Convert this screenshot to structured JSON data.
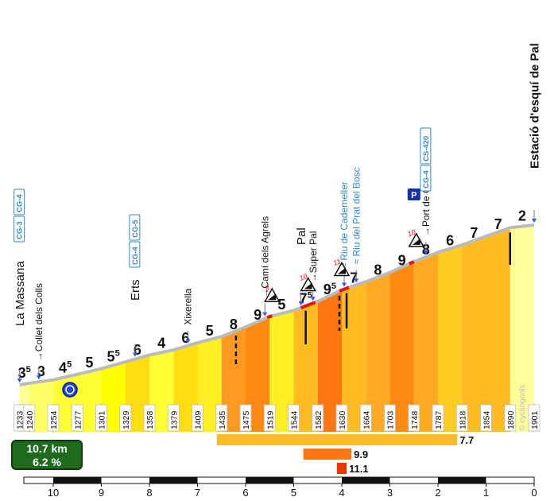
{
  "summary": {
    "distance": "10.7 km",
    "gradient": "6.2 %"
  },
  "watermark": "© cyclingcols",
  "chart_data": {
    "type": "area",
    "x_axis": {
      "reversed": true,
      "range": [
        10.7,
        0
      ],
      "ticks": [
        "10",
        "9",
        "8",
        "7",
        "6",
        "5",
        "4",
        "3",
        "2",
        "1",
        "0"
      ],
      "unit": "km"
    },
    "segments": [
      {
        "from": 10.7,
        "to": 10.5,
        "label": "3",
        "sup": "5",
        "color": "#ffff99"
      },
      {
        "from": 10.5,
        "to": 10.0,
        "label": "3",
        "sup": "",
        "color": "#ffff66"
      },
      {
        "from": 10.0,
        "to": 9.5,
        "label": "4",
        "sup": "5",
        "color": "#ffff33"
      },
      {
        "from": 9.5,
        "to": 9.0,
        "label": "5",
        "sup": "",
        "color": "#ffff33"
      },
      {
        "from": 9.0,
        "to": 8.5,
        "label": "5",
        "sup": "5",
        "color": "#ffff00"
      },
      {
        "from": 8.5,
        "to": 8.0,
        "label": "6",
        "sup": "",
        "color": "#ffdd11"
      },
      {
        "from": 8.0,
        "to": 7.5,
        "label": "4",
        "sup": "",
        "color": "#ffff33"
      },
      {
        "from": 7.5,
        "to": 7.0,
        "label": "6",
        "sup": "",
        "color": "#ffdd11"
      },
      {
        "from": 7.0,
        "to": 6.5,
        "label": "5",
        "sup": "",
        "color": "#ffee22"
      },
      {
        "from": 6.5,
        "to": 6.0,
        "label": "8",
        "sup": "",
        "color": "#ff9922"
      },
      {
        "from": 6.0,
        "to": 5.5,
        "label": "9",
        "sup": "",
        "color": "#ff8811"
      },
      {
        "from": 5.5,
        "to": 5.0,
        "label": "5",
        "sup": "",
        "color": "#ffee22"
      },
      {
        "from": 5.0,
        "to": 4.5,
        "label": "7",
        "sup": "5",
        "color": "#ffbb22"
      },
      {
        "from": 4.5,
        "to": 4.0,
        "label": "9",
        "sup": "5",
        "color": "#ff7711"
      },
      {
        "from": 4.0,
        "to": 3.5,
        "label": "7",
        "sup": "",
        "color": "#ffbb22"
      },
      {
        "from": 3.5,
        "to": 3.0,
        "label": "8",
        "sup": "",
        "color": "#ffaa22"
      },
      {
        "from": 3.0,
        "to": 2.5,
        "label": "9",
        "sup": "",
        "color": "#ff8811"
      },
      {
        "from": 2.5,
        "to": 2.0,
        "label": "8",
        "sup": "",
        "color": "#ffaa22"
      },
      {
        "from": 2.0,
        "to": 1.5,
        "label": "6",
        "sup": "",
        "color": "#ffcc22"
      },
      {
        "from": 1.5,
        "to": 1.0,
        "label": "7",
        "sup": "",
        "color": "#ffbb22"
      },
      {
        "from": 1.0,
        "to": 0.5,
        "label": "7",
        "sup": "",
        "color": "#ffbb22"
      },
      {
        "from": 0.5,
        "to": 0.0,
        "label": "2",
        "sup": "",
        "color": "#ffff99"
      }
    ],
    "altitudes": [
      {
        "km": 10.7,
        "alt": 1233
      },
      {
        "km": 10.5,
        "alt": 1240
      },
      {
        "km": 10.0,
        "alt": 1254
      },
      {
        "km": 9.5,
        "alt": 1277
      },
      {
        "km": 9.0,
        "alt": 1301
      },
      {
        "km": 8.5,
        "alt": 1329
      },
      {
        "km": 8.0,
        "alt": 1358
      },
      {
        "km": 7.5,
        "alt": 1379
      },
      {
        "km": 7.0,
        "alt": 1409
      },
      {
        "km": 6.5,
        "alt": 1435
      },
      {
        "km": 6.0,
        "alt": 1475
      },
      {
        "km": 5.5,
        "alt": 1519
      },
      {
        "km": 5.0,
        "alt": 1544
      },
      {
        "km": 4.5,
        "alt": 1582
      },
      {
        "km": 4.0,
        "alt": 1630
      },
      {
        "km": 3.5,
        "alt": 1664
      },
      {
        "km": 3.0,
        "alt": 1703
      },
      {
        "km": 2.5,
        "alt": 1748
      },
      {
        "km": 2.0,
        "alt": 1787
      },
      {
        "km": 1.5,
        "alt": 1818
      },
      {
        "km": 1.0,
        "alt": 1854
      },
      {
        "km": 0.5,
        "alt": 1890
      },
      {
        "km": 0.0,
        "alt": 1901
      }
    ],
    "waypoints": [
      {
        "km": 10.7,
        "name": "La Massana",
        "size": "big",
        "bold": false,
        "arrow": false,
        "roads": [
          "CG-3",
          "CG-4"
        ]
      },
      {
        "km": 10.3,
        "name": "Collet dels Colls",
        "size": "small",
        "bold": false,
        "arrow": true,
        "roads": []
      },
      {
        "km": 8.3,
        "name": "Erts",
        "size": "big",
        "bold": false,
        "arrow": false,
        "roads": [
          "CG-4",
          "CG-5"
        ]
      },
      {
        "km": 7.2,
        "name": "Xixerella",
        "size": "small",
        "bold": false,
        "arrow": false,
        "roads": []
      },
      {
        "km": 5.6,
        "name": "Camí dels Agrels",
        "size": "small",
        "bold": false,
        "arrow": true,
        "roads": []
      },
      {
        "km": 4.85,
        "name": "Pal",
        "size": "big",
        "bold": false,
        "arrow": false,
        "roads": []
      },
      {
        "km": 4.6,
        "name": "Super Pal",
        "size": "small",
        "bold": false,
        "arrow": true,
        "roads": []
      },
      {
        "km": 3.95,
        "name": "Riu de Cademeller",
        "size": "small",
        "bold": false,
        "arrow": false,
        "water": true,
        "roads": []
      },
      {
        "km": 3.7,
        "name": "Riu del Prat del Bosc",
        "size": "small",
        "bold": false,
        "arrow": false,
        "water": true,
        "roads": []
      },
      {
        "km": 2.25,
        "name": "Port de Cabús",
        "size": "small",
        "bold": false,
        "arrow": true,
        "roads": [
          "CG-4",
          "CS-420"
        ]
      },
      {
        "km": 0.0,
        "name": "Estació d'esquí de Pal",
        "size": "big",
        "bold": true,
        "arrow": false,
        "roads": []
      }
    ],
    "steep_signs": [
      {
        "km": 5.45,
        "pct": "8"
      },
      {
        "km": 4.7,
        "pct": "10"
      },
      {
        "km": 4.0,
        "pct": "11"
      },
      {
        "km": 2.45,
        "pct": "10"
      }
    ],
    "parking_label": "P",
    "max_bars": [
      {
        "length": "3",
        "max": "7.7",
        "color": "#ffbb22"
      },
      {
        "length": "1",
        "max": "9.9",
        "color": "#ff7711"
      },
      {
        "length": "0.2",
        "max": "11.1",
        "color": "#ee3300"
      }
    ]
  }
}
